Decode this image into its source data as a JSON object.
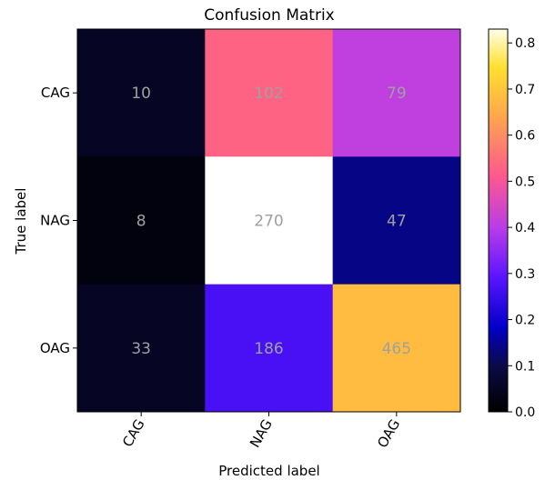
{
  "chart_data": {
    "type": "heatmap",
    "title": "Confusion Matrix",
    "xlabel": "Predicted label",
    "ylabel": "True label",
    "x_categories": [
      "CAG",
      "NAG",
      "OAG"
    ],
    "y_categories": [
      "CAG",
      "NAG",
      "OAG"
    ],
    "counts": [
      [
        10,
        102,
        79
      ],
      [
        8,
        270,
        47
      ],
      [
        33,
        186,
        465
      ]
    ],
    "normalized_values": [
      [
        0.05,
        0.53,
        0.41
      ],
      [
        0.02,
        0.83,
        0.14
      ],
      [
        0.05,
        0.27,
        0.68
      ]
    ],
    "colormap": "gnuplot2",
    "colorbar": {
      "range": [
        0.0,
        0.83
      ],
      "ticks": [
        "0.0",
        "0.1",
        "0.2",
        "0.3",
        "0.4",
        "0.5",
        "0.6",
        "0.7",
        "0.8"
      ]
    },
    "cell_text_color": "#a0a0a0"
  }
}
